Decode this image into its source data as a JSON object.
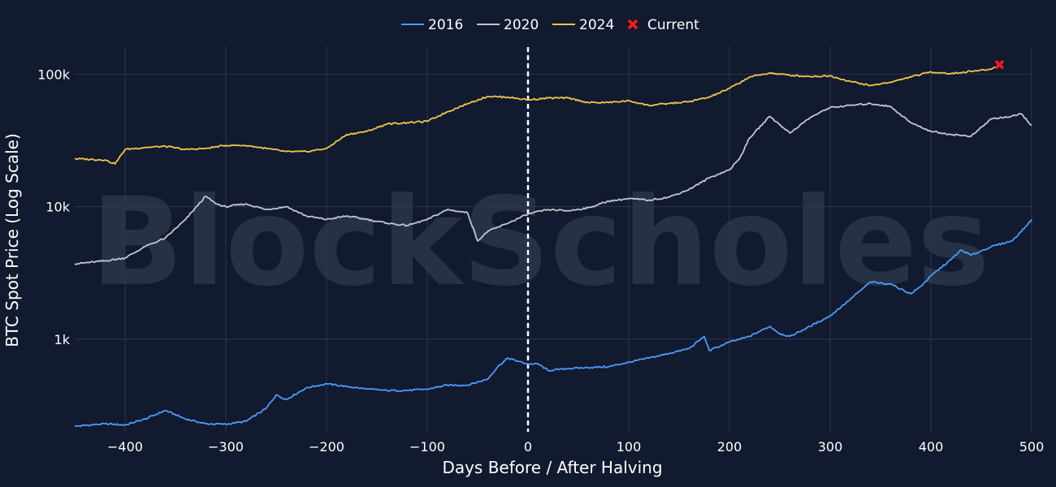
{
  "watermark": "BlockScholes",
  "chart_data": {
    "type": "line",
    "title": "",
    "xlabel": "Days Before / After Halving",
    "ylabel": "BTC Spot Price (Log Scale)",
    "y_scale": "log",
    "xlim": [
      -450,
      500
    ],
    "ylim": [
      200,
      160000
    ],
    "grid": true,
    "legend_position": "top-center",
    "x_ticks": [
      -400,
      -300,
      -200,
      -100,
      0,
      100,
      200,
      300,
      400,
      500
    ],
    "x_tick_labels": [
      "−400",
      "−300",
      "−200",
      "−100",
      "0",
      "100",
      "200",
      "300",
      "400",
      "500"
    ],
    "y_ticks": [
      1000,
      10000,
      100000
    ],
    "y_tick_labels": [
      "1k",
      "10k",
      "100k"
    ],
    "halving_marker_x": 0,
    "series": [
      {
        "name": "2016",
        "color": "#4b9bff",
        "x": [
          -450,
          -420,
          -400,
          -380,
          -360,
          -340,
          -320,
          -300,
          -280,
          -260,
          -250,
          -240,
          -220,
          -200,
          -180,
          -160,
          -140,
          -120,
          -100,
          -80,
          -60,
          -40,
          -30,
          -20,
          -10,
          0,
          10,
          20,
          40,
          60,
          80,
          100,
          120,
          140,
          160,
          175,
          180,
          200,
          220,
          240,
          250,
          260,
          280,
          300,
          320,
          340,
          360,
          380,
          390,
          400,
          420,
          430,
          440,
          460,
          480,
          490,
          500
        ],
        "y": [
          220,
          230,
          225,
          250,
          290,
          250,
          230,
          228,
          240,
          300,
          380,
          350,
          430,
          460,
          440,
          420,
          410,
          410,
          420,
          450,
          450,
          500,
          620,
          720,
          680,
          650,
          650,
          580,
          600,
          610,
          620,
          670,
          720,
          780,
          850,
          1050,
          820,
          950,
          1050,
          1250,
          1100,
          1050,
          1250,
          1500,
          2000,
          2700,
          2600,
          2200,
          2500,
          3000,
          4000,
          4700,
          4300,
          5000,
          5500,
          6500,
          8000
        ]
      },
      {
        "name": "2020",
        "color": "#c4c6cc",
        "x": [
          -450,
          -420,
          -400,
          -380,
          -360,
          -340,
          -320,
          -310,
          -300,
          -280,
          -260,
          -240,
          -220,
          -200,
          -180,
          -160,
          -140,
          -120,
          -100,
          -80,
          -60,
          -50,
          -40,
          -20,
          0,
          20,
          40,
          60,
          80,
          100,
          120,
          140,
          160,
          180,
          200,
          210,
          220,
          240,
          260,
          280,
          300,
          320,
          340,
          360,
          380,
          400,
          420,
          440,
          460,
          480,
          490,
          500
        ],
        "y": [
          3700,
          3900,
          4100,
          5000,
          5800,
          8000,
          12000,
          10500,
          10000,
          10500,
          9500,
          10000,
          8500,
          8000,
          8500,
          8000,
          7500,
          7200,
          8000,
          9500,
          9000,
          5500,
          6500,
          7500,
          8800,
          9500,
          9300,
          9800,
          11000,
          11500,
          11200,
          11800,
          13500,
          16500,
          19000,
          23000,
          33000,
          48000,
          36000,
          47000,
          56000,
          58000,
          60000,
          57000,
          43000,
          37000,
          35000,
          34000,
          46000,
          48000,
          50000,
          41000
        ]
      },
      {
        "name": "2024",
        "color": "#f0c64a",
        "x": [
          -450,
          -420,
          -410,
          -400,
          -380,
          -360,
          -340,
          -320,
          -300,
          -280,
          -260,
          -240,
          -220,
          -200,
          -180,
          -160,
          -140,
          -120,
          -100,
          -80,
          -60,
          -40,
          -20,
          0,
          20,
          40,
          60,
          80,
          100,
          120,
          140,
          160,
          180,
          200,
          220,
          240,
          260,
          280,
          300,
          320,
          340,
          360,
          380,
          400,
          420,
          440,
          460,
          468
        ],
        "y": [
          23000,
          22500,
          21000,
          27000,
          28000,
          28500,
          27000,
          27500,
          29000,
          29000,
          27500,
          26000,
          26000,
          27500,
          35000,
          37000,
          42000,
          43000,
          44000,
          52000,
          60000,
          68000,
          67000,
          64000,
          66000,
          66000,
          61000,
          61000,
          63000,
          58000,
          60000,
          62000,
          67000,
          78000,
          95000,
          102000,
          98000,
          96000,
          97000,
          88000,
          82000,
          87000,
          95000,
          104000,
          101000,
          105000,
          109000,
          118000
        ]
      },
      {
        "name": "Current",
        "type": "marker",
        "color": "#ff1a1a",
        "x": [
          468
        ],
        "y": [
          118000
        ]
      }
    ]
  }
}
